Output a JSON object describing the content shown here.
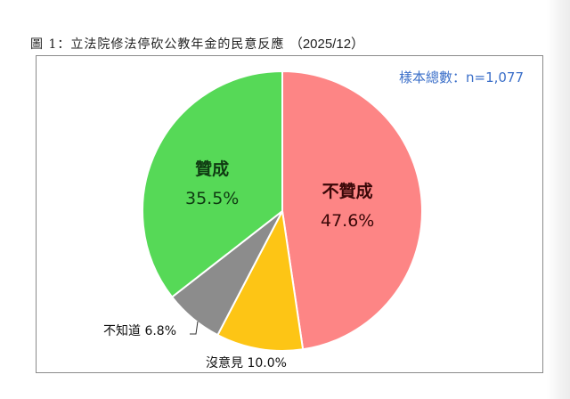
{
  "figure": {
    "title_prefix": "圖 1：立法院修法停砍公教年金的民意反應",
    "title_date": "（2025/12）",
    "sample_size_label": "樣本總數：n=1,077"
  },
  "chart_data": {
    "type": "pie",
    "title": "圖 1：立法院修法停砍公教年金的民意反應 （2025/12）",
    "annotation": "樣本總數：n=1,077",
    "categories": [
      "不贊成",
      "沒意見",
      "不知道",
      "贊成"
    ],
    "values": [
      47.6,
      10.0,
      6.8,
      35.5
    ],
    "colors": [
      "#fd8585",
      "#fdc515",
      "#8c8c8c",
      "#56d957"
    ],
    "start_angle": "12 o'clock, clockwise",
    "labels": {
      "disagree": {
        "name": "不贊成",
        "pct": "47.6%"
      },
      "no_opinion": {
        "name": "沒意見",
        "pct": "10.0%",
        "text": "沒意見 10.0%"
      },
      "dont_know": {
        "name": "不知道",
        "pct": "6.8%",
        "text": "不知道 6.8%"
      },
      "agree": {
        "name": "贊成",
        "pct": "35.5%"
      }
    },
    "legend": "none (inline labels)"
  }
}
